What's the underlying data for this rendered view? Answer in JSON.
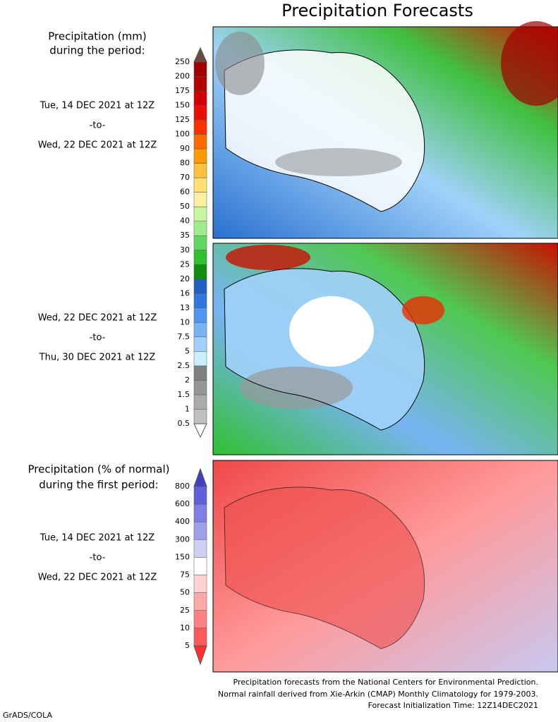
{
  "title": "Precipitation Forecasts",
  "mm_legend": {
    "heading": [
      "Precipitation (mm)",
      "during the period:"
    ],
    "labels": [
      "250",
      "200",
      "175",
      "150",
      "125",
      "100",
      "90",
      "80",
      "70",
      "60",
      "50",
      "40",
      "35",
      "30",
      "25",
      "20",
      "16",
      "13",
      "10",
      "7.5",
      "5",
      "2.5",
      "2",
      "1.5",
      "1",
      "0.5"
    ]
  },
  "pct_legend": {
    "heading": [
      "Precipitation (% of normal)",
      "during the first period:"
    ],
    "labels": [
      "800",
      "600",
      "400",
      "300",
      "150",
      "75",
      "50",
      "25",
      "10",
      "5"
    ]
  },
  "periods": [
    {
      "start": "Tue, 14 DEC 2021 at 12Z",
      "separator": "-to-",
      "end": "Wed, 22 DEC 2021 at 12Z"
    },
    {
      "start": "Wed, 22 DEC 2021 at 12Z",
      "separator": "-to-",
      "end": "Thu, 30 DEC 2021 at 12Z"
    },
    {
      "start": "Tue, 14 DEC 2021 at 12Z",
      "separator": "-to-",
      "end": "Wed, 22 DEC 2021 at 12Z"
    }
  ],
  "footer": [
    "Precipitation forecasts from the National Centers for Environmental Prediction.",
    "Normal rainfall derived from Xie-Arkin (CMAP) Monthly Climatology for 1979-2003.",
    "Forecast Initialization Time: 12Z14DEC2021"
  ],
  "credit": "GrADS/COLA"
}
